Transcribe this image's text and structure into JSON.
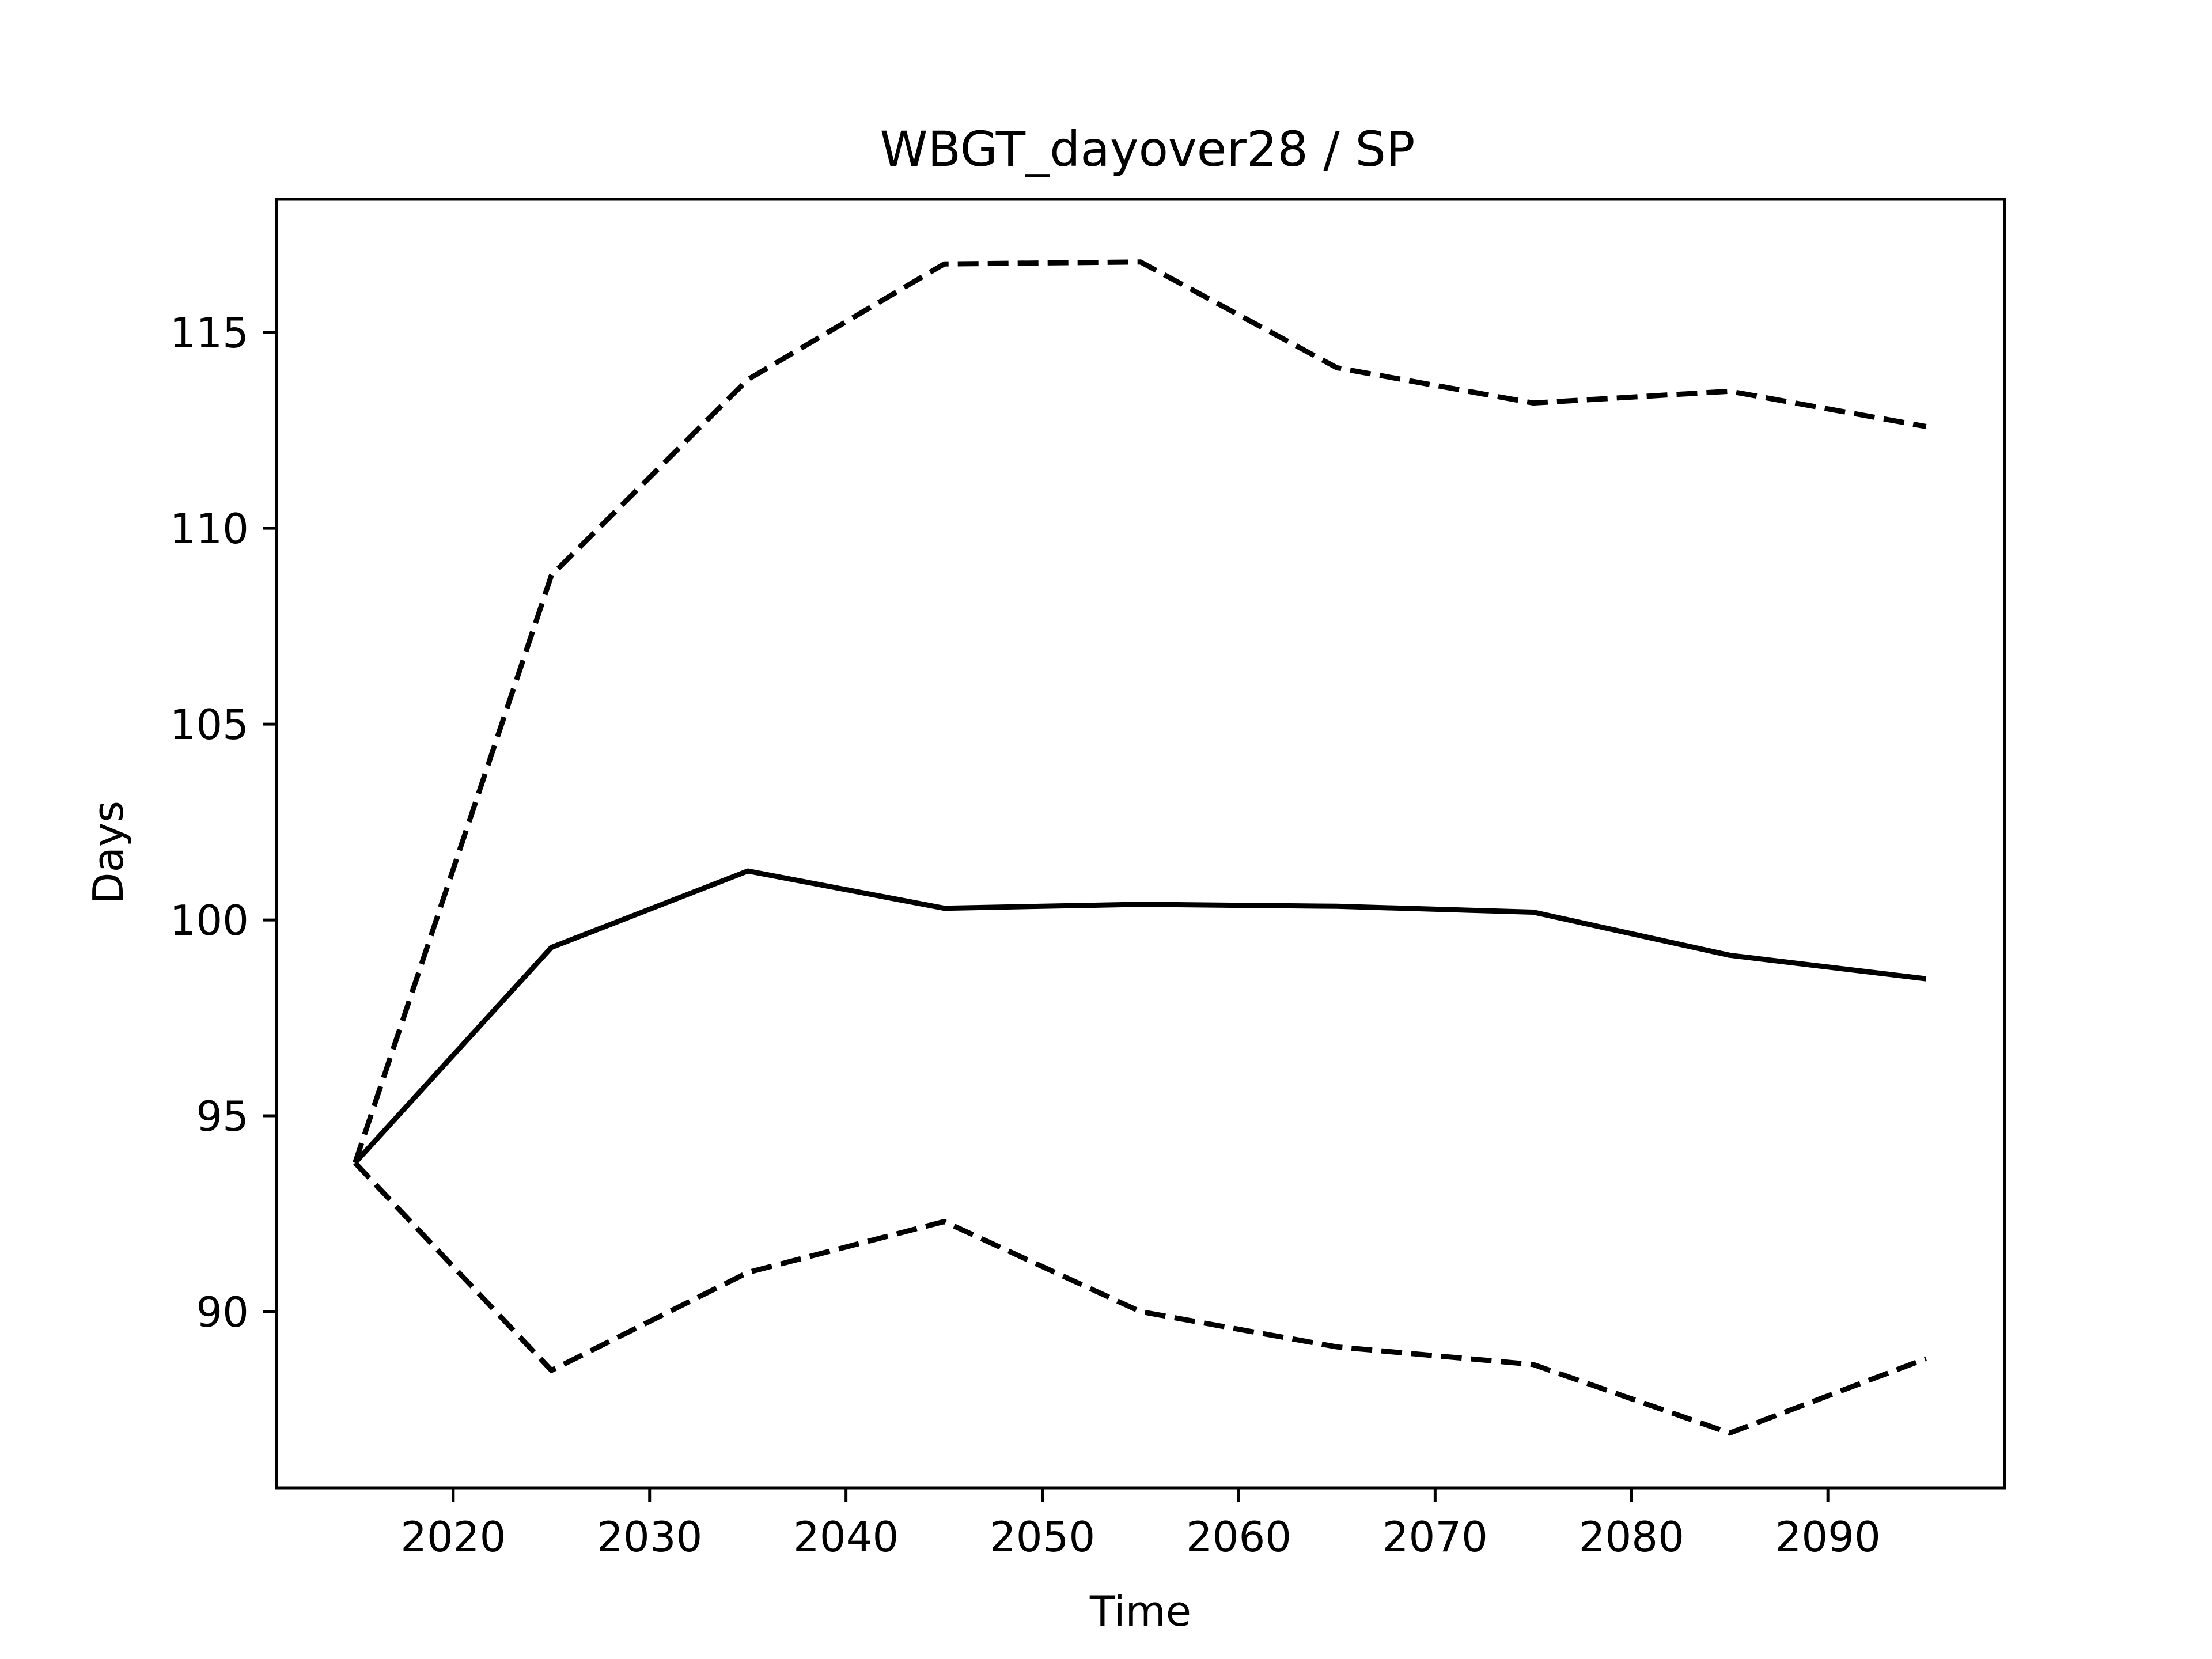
{
  "chart_data": {
    "type": "line",
    "title": "WBGT_dayover28 / SP",
    "xlabel": "Time",
    "ylabel": "Days",
    "xlim": [
      2011,
      2099
    ],
    "ylim": [
      85.5,
      118.4
    ],
    "xticks": [
      2020,
      2030,
      2040,
      2050,
      2060,
      2070,
      2080,
      2090
    ],
    "yticks": [
      90,
      95,
      100,
      105,
      110,
      115
    ],
    "grid": false,
    "x": [
      2015,
      2025,
      2035,
      2045,
      2055,
      2065,
      2075,
      2085,
      2095
    ],
    "series": [
      {
        "style": "solid",
        "color": "#000000",
        "values": [
          93.8,
          99.3,
          101.25,
          100.3,
          100.4,
          100.35,
          100.2,
          99.1,
          98.5
        ]
      },
      {
        "style": "dashed",
        "color": "#000000",
        "values": [
          93.8,
          108.8,
          113.8,
          116.75,
          116.8,
          114.1,
          113.2,
          113.5,
          112.6
        ]
      },
      {
        "style": "dashed",
        "color": "#000000",
        "values": [
          93.8,
          88.5,
          91.0,
          92.3,
          90.0,
          89.1,
          88.65,
          86.9,
          88.8
        ]
      }
    ]
  }
}
